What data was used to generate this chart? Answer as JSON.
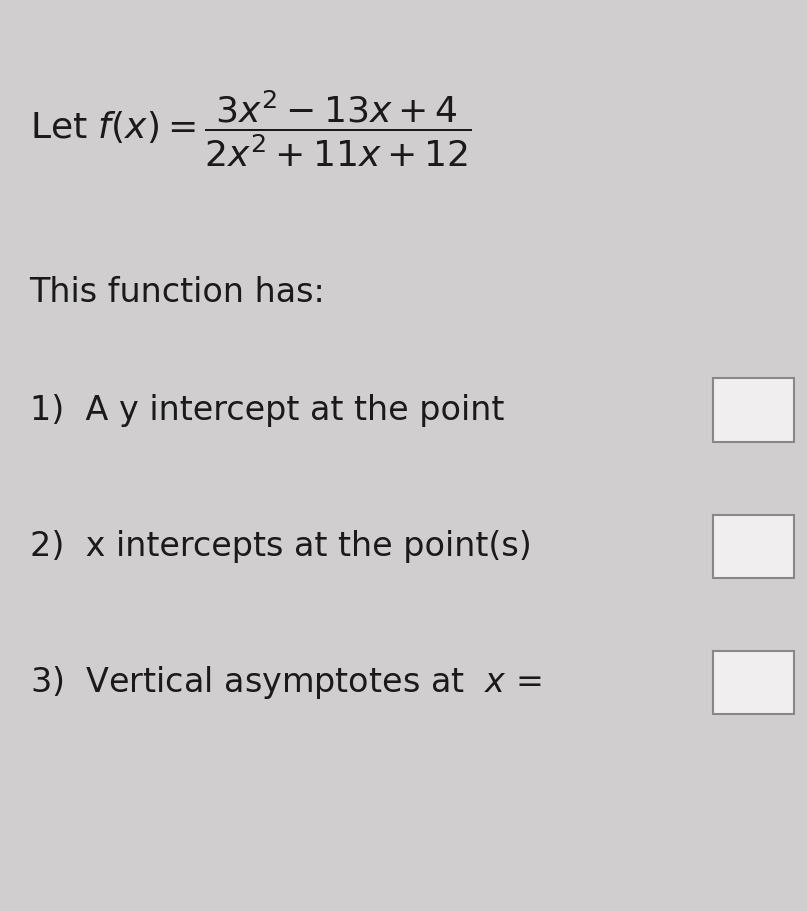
{
  "background_color": "#d0cece",
  "title_line1": "Let $f(x) = \\dfrac{3x^2 - 13x + 4}{2x^2 + 11x + 12}$",
  "subtitle": "This function has:",
  "item1": "1)  A y intercept at the point",
  "item2": "2)  x intercepts at the point(s)",
  "item3": "3)  Vertical asymptotes at  $x$ =",
  "text_color": "#1a1a1a",
  "box_color": "#f0eeee",
  "box_edge_color": "#888888",
  "font_size_main": 26,
  "font_size_items": 24,
  "font_size_subtitle": 24
}
